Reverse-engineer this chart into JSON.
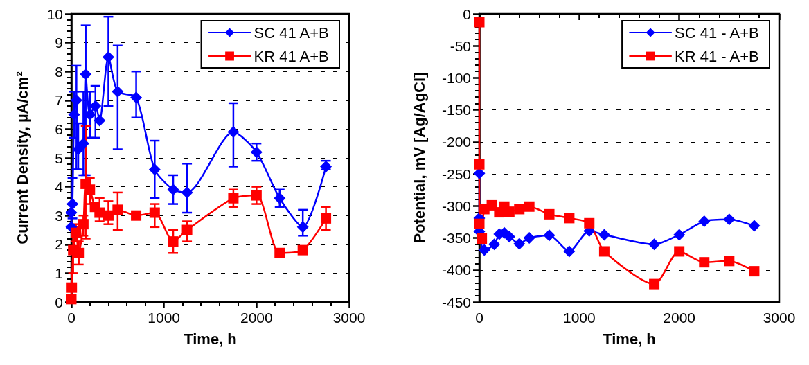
{
  "chart_data": [
    {
      "type": "line",
      "xlabel": "Time, h",
      "ylabel": "Current Density, µA/cm²",
      "xlim": [
        0,
        3000
      ],
      "xticks": [
        0,
        1000,
        2000,
        3000
      ],
      "ylim": [
        0,
        10
      ],
      "yticks": [
        0,
        1,
        2,
        3,
        4,
        5,
        6,
        7,
        8,
        9,
        10
      ],
      "grid": "y",
      "legend": "top right",
      "line_style": "solid",
      "series": [
        {
          "name": "SC 41 A+B",
          "color": "#0000ff",
          "marker": "diamond",
          "x": [
            0,
            0,
            12,
            30,
            55,
            75,
            130,
            155,
            200,
            260,
            305,
            400,
            500,
            700,
            900,
            1100,
            1250,
            1750,
            2000,
            2250,
            2500,
            2750
          ],
          "values": [
            2.6,
            3.1,
            3.4,
            6.5,
            7.0,
            5.3,
            5.5,
            7.9,
            6.5,
            6.8,
            6.3,
            8.5,
            7.3,
            7.1,
            4.6,
            3.9,
            3.8,
            5.9,
            5.2,
            3.6,
            2.6,
            4.7
          ],
          "errors": [
            null,
            null,
            [
              2.9,
              4.3
            ],
            [
              5.7,
              7.3
            ],
            [
              4.6,
              8.2
            ],
            [
              4.6,
              6.2
            ],
            [
              4.4,
              7.3
            ],
            [
              4.4,
              9.6
            ],
            [
              5.7,
              7.3
            ],
            [
              5.7,
              7.5
            ],
            null,
            [
              6.8,
              9.9
            ],
            [
              5.3,
              8.9
            ],
            [
              6.4,
              8.0
            ],
            [
              3.6,
              5.6
            ],
            [
              3.4,
              4.4
            ],
            [
              3.1,
              4.8
            ],
            [
              4.7,
              6.9
            ],
            [
              4.9,
              5.5
            ],
            [
              3.3,
              3.9
            ],
            [
              2.3,
              3.2
            ],
            [
              4.6,
              4.9
            ]
          ]
        },
        {
          "name": "KR 41 A+B",
          "color": "#ff0000",
          "marker": "square",
          "x": [
            0,
            5,
            20,
            50,
            80,
            130,
            155,
            200,
            255,
            305,
            400,
            500,
            700,
            900,
            1100,
            1250,
            1750,
            2000,
            2250,
            2500,
            2750
          ],
          "values": [
            0.1,
            0.5,
            1.8,
            2.4,
            1.7,
            2.7,
            4.1,
            3.9,
            3.3,
            3.1,
            3.0,
            3.2,
            3.0,
            3.1,
            2.1,
            2.5,
            3.6,
            3.7,
            1.7,
            1.8,
            2.9
          ],
          "errors": [
            null,
            null,
            [
              1.0,
              2.6
            ],
            [
              2.1,
              2.7
            ],
            [
              1.3,
              2.1
            ],
            [
              2.3,
              3.0
            ],
            [
              2.2,
              6.1
            ],
            [
              3.4,
              4.3
            ],
            null,
            [
              2.8,
              3.6
            ],
            [
              2.7,
              3.5
            ],
            [
              2.5,
              3.8
            ],
            null,
            [
              2.6,
              3.4
            ],
            [
              1.7,
              2.5
            ],
            [
              2.1,
              2.8
            ],
            [
              3.3,
              3.9
            ],
            [
              3.4,
              4.0
            ],
            null,
            null,
            [
              2.5,
              3.3
            ]
          ]
        }
      ]
    },
    {
      "type": "line",
      "xlabel": "Time, h",
      "ylabel": "Potential, mV [Ag/AgCl]",
      "xlim": [
        0,
        3000
      ],
      "xticks": [
        0,
        1000,
        2000,
        3000
      ],
      "ylim": [
        -450,
        0
      ],
      "yticks": [
        -450,
        -400,
        -350,
        -300,
        -250,
        -200,
        -150,
        -100,
        -50,
        0
      ],
      "grid": "y",
      "legend": "top right",
      "line_style": "solid",
      "series": [
        {
          "name": "SC 41 - A+B",
          "color": "#0000ff",
          "marker": "diamond",
          "x": [
            0,
            0,
            0,
            50,
            150,
            200,
            250,
            300,
            400,
            500,
            700,
            900,
            1100,
            1250,
            1750,
            2000,
            2250,
            2500,
            2750
          ],
          "values": [
            -249,
            -319,
            -340,
            -369,
            -360,
            -344,
            -342,
            -348,
            -359,
            -350,
            -346,
            -371,
            -339,
            -345,
            -360,
            -345,
            -324,
            -321,
            -331
          ]
        },
        {
          "name": "KR 41 - A+B",
          "color": "#ff0000",
          "marker": "square",
          "x": [
            0,
            0,
            0,
            25,
            50,
            125,
            200,
            250,
            300,
            400,
            500,
            700,
            900,
            1100,
            1250,
            1750,
            2000,
            2250,
            2500,
            2750
          ],
          "values": [
            -13,
            -235,
            -328,
            -351,
            -305,
            -299,
            -310,
            -301,
            -309,
            -305,
            -301,
            -313,
            -319,
            -327,
            -371,
            -422,
            -371,
            -388,
            -386,
            -402
          ]
        }
      ]
    }
  ]
}
